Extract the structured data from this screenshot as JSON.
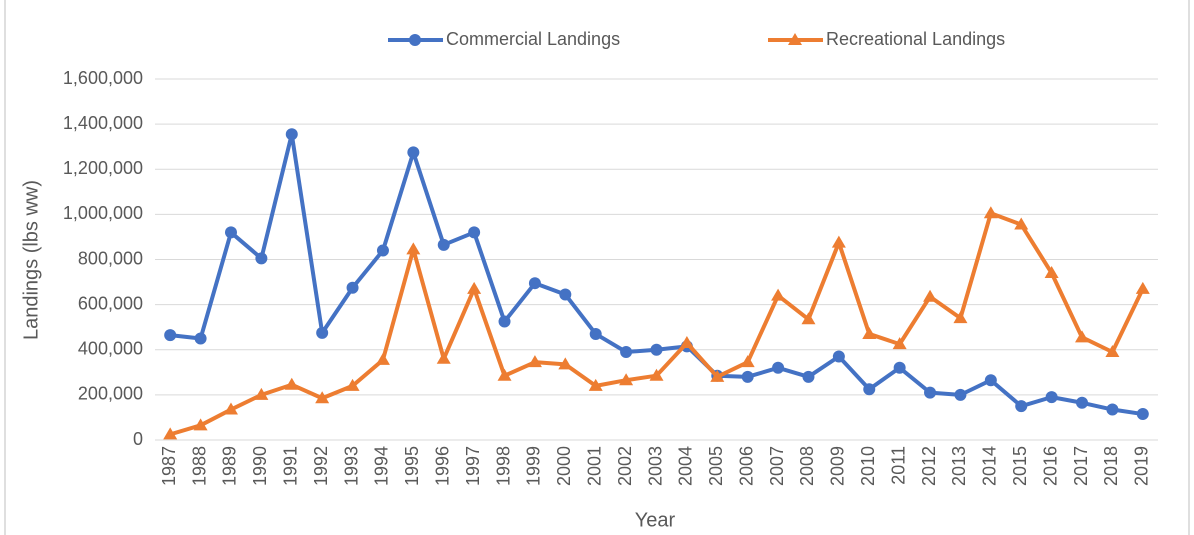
{
  "chart_data": {
    "type": "line",
    "y_label": "Landings (lbs ww)",
    "x_label": "Year",
    "categories": [
      "1987",
      "1988",
      "1989",
      "1990",
      "1991",
      "1992",
      "1993",
      "1994",
      "1995",
      "1996",
      "1997",
      "1998",
      "1999",
      "2000",
      "2001",
      "2002",
      "2003",
      "2004",
      "2005",
      "2006",
      "2007",
      "2008",
      "2009",
      "2010",
      "2011",
      "2012",
      "2013",
      "2014",
      "2015",
      "2016",
      "2017",
      "2018",
      "2019"
    ],
    "series": [
      {
        "name": "Commercial Landings",
        "color": "#4472c4",
        "marker": "circle",
        "values": [
          465000,
          450000,
          920000,
          805000,
          1355000,
          475000,
          675000,
          840000,
          1275000,
          865000,
          920000,
          525000,
          695000,
          645000,
          470000,
          390000,
          400000,
          415000,
          285000,
          280000,
          320000,
          280000,
          370000,
          225000,
          320000,
          210000,
          200000,
          265000,
          150000,
          190000,
          165000,
          135000,
          115000
        ]
      },
      {
        "name": "Recreational Landings",
        "color": "#ed7d31",
        "marker": "triangle",
        "values": [
          25000,
          65000,
          135000,
          200000,
          245000,
          185000,
          240000,
          355000,
          845000,
          360000,
          670000,
          285000,
          345000,
          335000,
          240000,
          265000,
          285000,
          430000,
          280000,
          345000,
          640000,
          535000,
          875000,
          470000,
          425000,
          635000,
          540000,
          1005000,
          955000,
          740000,
          455000,
          390000,
          670000
        ]
      }
    ],
    "ylim": [
      0,
      1600000
    ],
    "yticks": [
      0,
      {
        "value": 200000,
        "label": "200,000"
      },
      {
        "value": 400000,
        "label": "400,000"
      },
      {
        "value": 600000,
        "label": "600,000"
      },
      {
        "value": 800000,
        "label": "800,000"
      },
      {
        "value": 1000000,
        "label": "1,000,000"
      },
      {
        "value": 1200000,
        "label": "1,200,000"
      },
      {
        "value": 1400000,
        "label": "1,400,000"
      },
      {
        "value": 1600000,
        "label": "1,600,000"
      }
    ],
    "grid": true,
    "legend": "top"
  }
}
